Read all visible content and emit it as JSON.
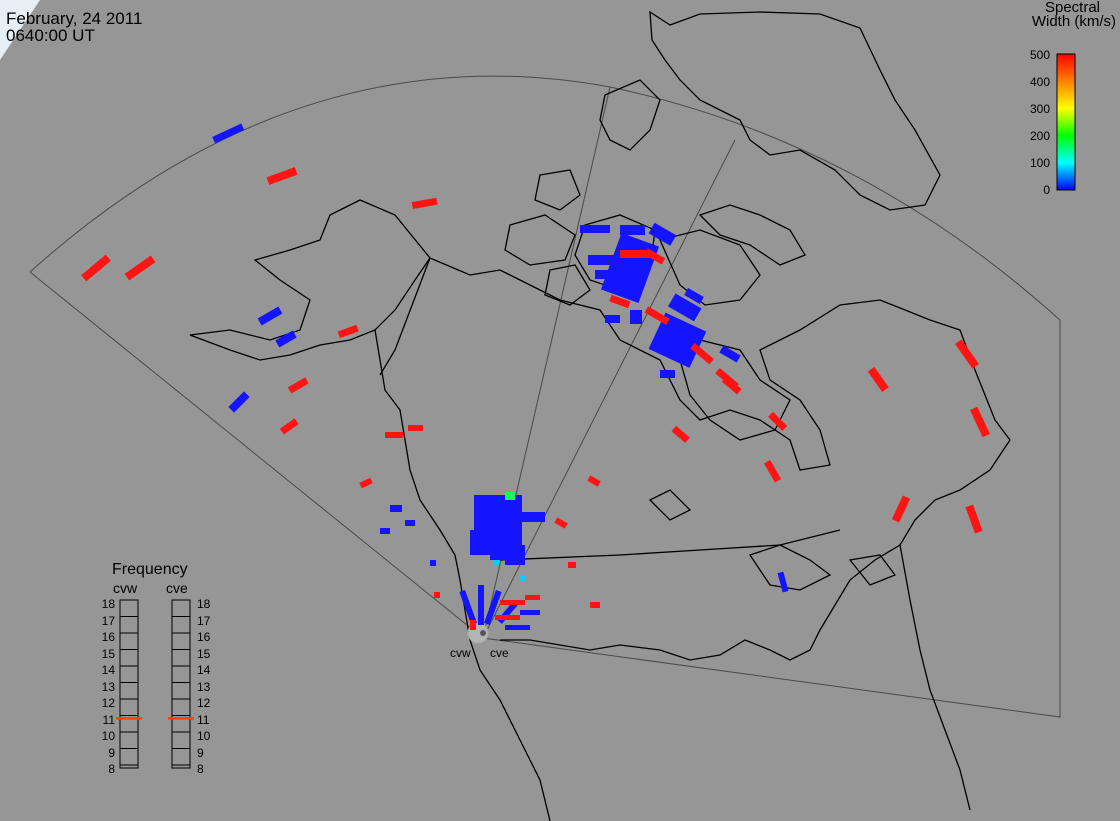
{
  "header": {
    "date": "February, 24 2011",
    "time": "0640:00 UT"
  },
  "colorbar": {
    "title_line1": "Spectral",
    "title_line2": "Width (km/s)",
    "ticks": [
      "500",
      "400",
      "300",
      "200",
      "100",
      "0"
    ],
    "colors": [
      "#ff0000",
      "#ff8000",
      "#ffff00",
      "#00ff00",
      "#00ffff",
      "#0000ff"
    ]
  },
  "frequency": {
    "title": "Frequency",
    "radars": [
      "cvw",
      "cve"
    ],
    "scale": [
      "18",
      "17",
      "16",
      "15",
      "14",
      "13",
      "12",
      "11",
      "10",
      "9",
      "8"
    ],
    "cvw_mhz": 10.8,
    "cve_mhz": 10.8
  },
  "sites": {
    "west": "cvw",
    "east": "cve"
  },
  "colors": {
    "background": "#969696",
    "coast": "#000000",
    "fov": "#4a4a4a",
    "low_width": "#1414ff",
    "high_width": "#ff1414",
    "mid_width": "#14ff50",
    "freq_marker": "#ff4000"
  }
}
